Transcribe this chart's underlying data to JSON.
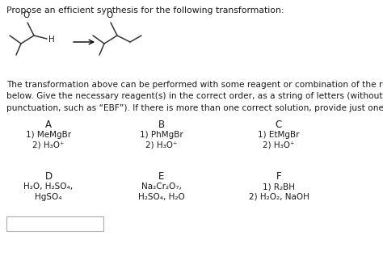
{
  "title": "Propose an efficient synthesis for the following transformation:",
  "body_text": "The transformation above can be performed with some reagent or combination of the reagents listed\nbelow. Give the necessary reagent(s) in the correct order, as a string of letters (without spaces or\npunctuation, such as “EBF”). If there is more than one correct solution, provide just one answer.",
  "col_headers": [
    "A",
    "B",
    "C"
  ],
  "col_headers2": [
    "D",
    "E",
    "F"
  ],
  "reagents_A": [
    "1) MeMgBr",
    "2) H₃O⁺"
  ],
  "reagents_B": [
    "1) PhMgBr",
    "2) H₃O⁺"
  ],
  "reagents_C": [
    "1) EtMgBr",
    "2) H₃O⁺"
  ],
  "reagents_D": [
    "H₂O, H₂SO₄,",
    "HgSO₄"
  ],
  "reagents_E": [
    "Na₂Cr₂O₇,",
    "H₂SO₄, H₂O"
  ],
  "reagents_F": [
    "1) R₂BH",
    "2) H₂O₂, NaOH"
  ],
  "bg_color": "#ffffff",
  "text_color": "#1a1a1a",
  "line_color": "#333333",
  "font_size": 7.5,
  "header_font_size": 8.5,
  "title_font_size": 7.8
}
